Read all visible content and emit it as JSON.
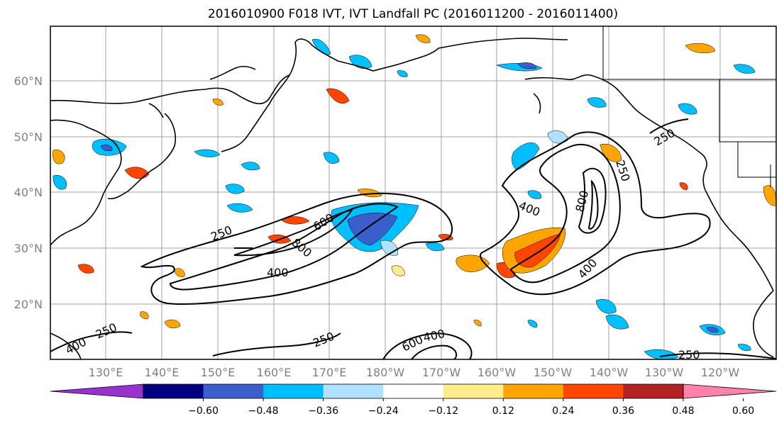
{
  "title": "2016010900 F018 IVT, IVT Landfall PC (2016011200 - 2016011400)",
  "map": {
    "lon_ticks": [
      "130°E",
      "140°E",
      "150°E",
      "160°E",
      "170°E",
      "180°W",
      "170°W",
      "160°W",
      "150°W",
      "140°W",
      "130°W",
      "120°W"
    ],
    "lat_ticks": [
      "20°N",
      "30°N",
      "40°N",
      "50°N",
      "60°N"
    ],
    "contour_labels": [
      "250",
      "400",
      "600",
      "800",
      "800",
      "400",
      "400",
      "250",
      "250",
      "250",
      "250",
      "400",
      "600",
      "400",
      "250"
    ],
    "coastline_color": "#000000",
    "grid_color": "#a0a0a0"
  },
  "colorbar": {
    "colors": [
      "#9932cc",
      "#000080",
      "#3a5fcd",
      "#00bfff",
      "#b0e2ff",
      "#ffffff",
      "#ffec8b",
      "#ffa500",
      "#ff4500",
      "#b22222",
      "#ff82ab"
    ],
    "tick_labels": [
      "-0.60",
      "-0.48",
      "-0.36",
      "-0.24",
      "-0.12",
      "0.12",
      "0.24",
      "0.36",
      "0.48",
      "0.60"
    ]
  }
}
